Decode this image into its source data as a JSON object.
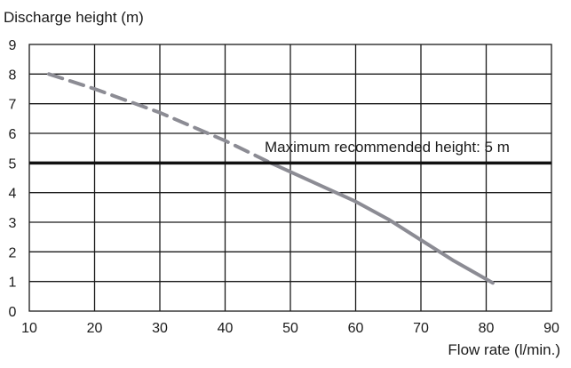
{
  "chart_data": {
    "type": "line",
    "ylabel": "Discharge height (m)",
    "xlabel": "Flow rate (l/min.)",
    "xlim": [
      10,
      90
    ],
    "ylim": [
      0,
      9
    ],
    "xticks": [
      10,
      20,
      30,
      40,
      50,
      60,
      70,
      80,
      90
    ],
    "yticks": [
      0,
      1,
      2,
      3,
      4,
      5,
      6,
      7,
      8,
      9
    ],
    "grid": true,
    "series": [
      {
        "style": "dashed",
        "color": "#8c8c94",
        "x": [
          13,
          20,
          30,
          40,
          47
        ],
        "y": [
          8.0,
          7.5,
          6.7,
          5.75,
          5.0
        ]
      },
      {
        "style": "solid",
        "color": "#8c8c94",
        "x": [
          47,
          50,
          60,
          65,
          70,
          75,
          81
        ],
        "y": [
          5.0,
          4.7,
          3.7,
          3.1,
          2.4,
          1.7,
          0.95
        ]
      }
    ],
    "reference_line": {
      "y": 5,
      "color": "#111111",
      "label": "Maximum recommended height: 5 m"
    }
  }
}
